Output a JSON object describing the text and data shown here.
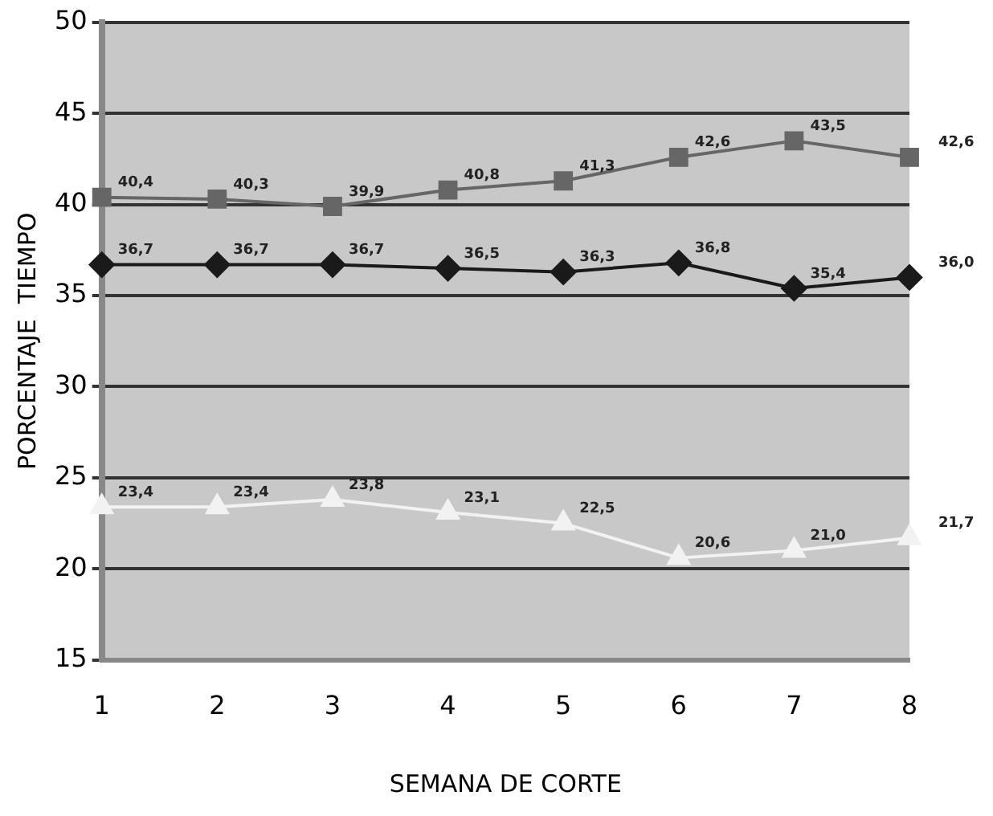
{
  "chart_data": {
    "type": "line",
    "xlabel": "SEMANA DE CORTE",
    "ylabel": "PORCENTAJE  TIEMPO",
    "categories": [
      "1",
      "2",
      "3",
      "4",
      "5",
      "6",
      "7",
      "8"
    ],
    "series": [
      {
        "color": "#666666",
        "marker": "square",
        "values": [
          40.4,
          40.3,
          39.9,
          40.8,
          41.3,
          42.6,
          43.5,
          42.6
        ],
        "value_labels": [
          "40,4",
          "40,3",
          "39,9",
          "40,8",
          "41,3",
          "42,6",
          "43,5",
          "42,6"
        ]
      },
      {
        "color": "#1a1a1a",
        "marker": "diamond",
        "values": [
          36.7,
          36.7,
          36.7,
          36.5,
          36.3,
          36.8,
          35.4,
          36.0
        ],
        "value_labels": [
          "36,7",
          "36,7",
          "36,7",
          "36,5",
          "36,3",
          "36,8",
          "35,4",
          "36,0"
        ]
      },
      {
        "color": "#f2f2f2",
        "marker": "triangle",
        "values": [
          23.4,
          23.4,
          23.8,
          23.1,
          22.5,
          20.6,
          21.0,
          21.7
        ],
        "value_labels": [
          "23,4",
          "23,4",
          "23,8",
          "23,1",
          "22,5",
          "20,6",
          "21,0",
          "21,7"
        ]
      }
    ],
    "ylim": [
      15,
      50
    ],
    "yticks": [
      15,
      20,
      25,
      30,
      35,
      40,
      45,
      50
    ],
    "grid": "y",
    "legend": false,
    "line_style": "solid"
  }
}
